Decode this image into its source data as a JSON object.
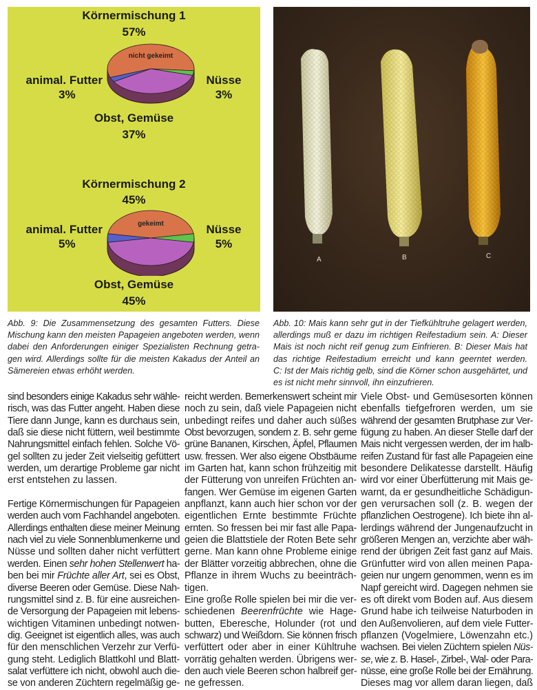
{
  "figure9": {
    "colors": {
      "background": "#d6dc46",
      "nicht_gekeimt": "#d9744a",
      "gekeimt": "#d9744a",
      "obst": "#b862c0",
      "obst_side": "#6e3658",
      "nuesse": "#5ec44a",
      "futter": "#5560c8"
    },
    "chart_data": [
      {
        "type": "pie",
        "title": "Körnermischung 1",
        "title_value": "57%",
        "slices": [
          {
            "name": "nicht gekeimt",
            "value": 57,
            "label": "",
            "inner_label": "nicht gekeimt",
            "color": "#d9744a"
          },
          {
            "name": "Nüsse",
            "value": 3,
            "label": "Nüsse",
            "pct": "3%",
            "color": "#5ec44a"
          },
          {
            "name": "Obst, Gemüse",
            "value": 37,
            "label": "Obst, Gemüse",
            "pct": "37%",
            "color": "#b862c0"
          },
          {
            "name": "animal. Futter",
            "value": 3,
            "label": "animal. Futter",
            "pct": "3%",
            "color": "#5560c8"
          }
        ]
      },
      {
        "type": "pie",
        "title": "Körnermischung 2",
        "title_value": "45%",
        "slices": [
          {
            "name": "gekeimt",
            "value": 45,
            "label": "",
            "inner_label": "gekeimt",
            "color": "#d9744a"
          },
          {
            "name": "Nüsse",
            "value": 5,
            "label": "Nüsse",
            "pct": "5%",
            "color": "#5ec44a"
          },
          {
            "name": "Obst, Gemüse",
            "value": 45,
            "label": "Obst, Gemüse",
            "pct": "45%",
            "color": "#b862c0"
          },
          {
            "name": "animal. Futter",
            "value": 5,
            "label": "animal. Futter",
            "pct": "5%",
            "color": "#5560c8"
          }
        ]
      }
    ],
    "caption": [
      "Abb. 9: Die Zusammensetzung des gesamten Futters. Diese",
      "Mischung kann den meisten Papageien angeboten werden, wenn",
      "dabei den Anforderungen einiger Spezialisten Rechnung getra-",
      "gen wird. Allerdings sollte für die meisten Kakadus der Anteil an",
      "Sämereien etwas erhöht werden."
    ]
  },
  "figure10": {
    "labels": [
      "A",
      "B",
      "C"
    ],
    "caption": [
      "Abb. 10: Mais kann sehr gut in der Tiefkühltruhe gelagert werden,",
      "allerdings muß er dazu im richtigen Reifestadium sein. A: Dieser",
      "Mais ist noch nicht reif genug zum Einfrieren. B: Dieser Mais hat",
      "das richtige Reifestadium erreicht und kann geerntet werden.",
      "C: Ist der Mais richtig gelb, sind die Körner schon ausgehärtet, und",
      "es ist nicht mehr sinnvoll, ihn einzufrieren."
    ]
  },
  "columns": [
    {
      "paragraphs": [
        {
          "continues": false,
          "gap": true,
          "lines": [
            "sind besonders einige Kakadus sehr wähle-",
            "risch, was das Futter angeht. Haben diese",
            "Tiere dann Junge, kann es durchaus sein,",
            "daß sie diese nicht füttern, weil bestimmte",
            "Nahrungsmittel einfach fehlen. Solche Vö-",
            "gel sollten zu jeder Zeit vielseitig gefüttert",
            "werden, um derartige Probleme gar nicht",
            "erst entstehen zu lassen."
          ]
        },
        {
          "continues": true,
          "gap": false,
          "lines": [
            "Fertige Körnermischungen für Papageien",
            "werden auch vom Fachhandel angeboten.",
            "Allerdings enthalten diese meiner Meinung",
            "nach viel zu viele Sonnenblumenkerne und",
            "Nüsse und sollten daher nicht verfüttert",
            [
              "werden. Einen ",
              {
                "i": "sehr hohen Stellenwert"
              },
              " ha-"
            ],
            [
              "ben bei mir ",
              {
                "i": "Früchte aller Art"
              },
              ", sei es Obst,"
            ],
            "diverse Beeren oder Gemüse. Diese Nah-",
            "rungsmittel sind z. B. für eine ausreichen-",
            "de Versorgung der Papageien mit lebens-",
            "wichtigen Vitaminen unbedingt notwen-",
            "dig. Geeignet ist eigentlich alles, was auch",
            "für den menschlichen Verzehr zur Verfü-",
            "gung steht. Lediglich Blattkohl und Blatt-",
            "salat verfüttere ich nicht, obwohl auch die-",
            "se von anderen Züchtern regelmäßig ge-"
          ]
        }
      ]
    },
    {
      "paragraphs": [
        {
          "continues": false,
          "gap": false,
          "lines": [
            "reicht werden. Bemerkenswert scheint mir",
            "noch zu sein, daß viele Papageien nicht",
            "unbedingt reifes und daher auch süßes",
            "Obst bevorzugen, sondern z. B. sehr gerne",
            "grüne Bananen, Kirschen, Äpfel, Pflaumen",
            "usw. fressen. Wer also eigene Obstbäume",
            "im Garten hat, kann schon frühzeitig mit",
            "der Fütterung von unreifen Früchten an-",
            "fangen. Wer Gemüse im eigenen Garten",
            "anpflanzt, kann auch hier schon vor der",
            "eigentlichen Ernte bestimmte Früchte",
            "ernten. So fressen bei mir fast alle Papa-",
            "geien die Blattstiele der Roten Bete sehr",
            "gerne. Man kann ohne Probleme einige",
            "der Blätter vorzeitig abbrechen, ohne die",
            "Pflanze in ihrem Wuchs zu beeinträch-",
            "tigen."
          ]
        },
        {
          "continues": false,
          "gap": false,
          "lines": [
            "Eine große Rolle spielen bei mir die ver-",
            [
              "schiedenen ",
              {
                "i": "Beerenfrüchte"
              },
              " wie Hage-"
            ],
            "butten, Eberesche, Holunder (rot und",
            "schwarz) und Weißdorn. Sie können frisch",
            "verfüttert oder aber in einer Kühltruhe",
            "vorrätig gehalten werden. Übrigens wer-",
            "den auch viele Beeren schon halbreif ger-",
            "ne gefressen."
          ]
        }
      ]
    },
    {
      "paragraphs": [
        {
          "continues": true,
          "gap": false,
          "lines": [
            "Viele Obst- und Gemüsesorten können",
            "ebenfalls tiefgefroren werden, um sie",
            "während der gesamten Brutphase zur Ver-",
            "fügung zu haben. An dieser Stelle darf der",
            "Mais nicht vergessen werden, der im halb-",
            "reifen Zustand für fast alle Papageien eine",
            "besondere Delikatesse darstellt. Häufig",
            "wird vor einer Überfütterung mit Mais ge-",
            "warnt, da er gesundheitliche Schädigun-",
            "gen verursachen soll (z. B. wegen der",
            "pflanzlichen Oestrogene). Ich biete ihn al-",
            "lerdings während der Jungenaufzucht in",
            "größeren Mengen an, verzichte aber wäh-",
            "rend der übrigen Zeit fast ganz auf Mais.",
            "Grünfutter wird von allen meinen Papa-",
            "geien nur ungern genommen, wenn es im",
            "Napf gereicht wird. Dagegen nehmen sie",
            "es oft direkt vom Boden auf. Aus diesem",
            "Grund habe ich teilweise Naturboden in",
            "den Außenvolieren, auf dem viele Futter-",
            "pflanzen (Vogelmiere, Löwenzahn etc.)",
            [
              "wachsen. Bei vielen Züchtern spielen ",
              {
                "i": "Nüs-"
              }
            ],
            [
              {
                "i": "se"
              },
              ", wie z. B. Hasel-, Zirbel-, Wal- oder Para-"
            ],
            "nüsse, eine große Rolle bei der Ernährung.",
            "Dieses mag vor allem daran liegen, daß"
          ]
        }
      ]
    }
  ]
}
